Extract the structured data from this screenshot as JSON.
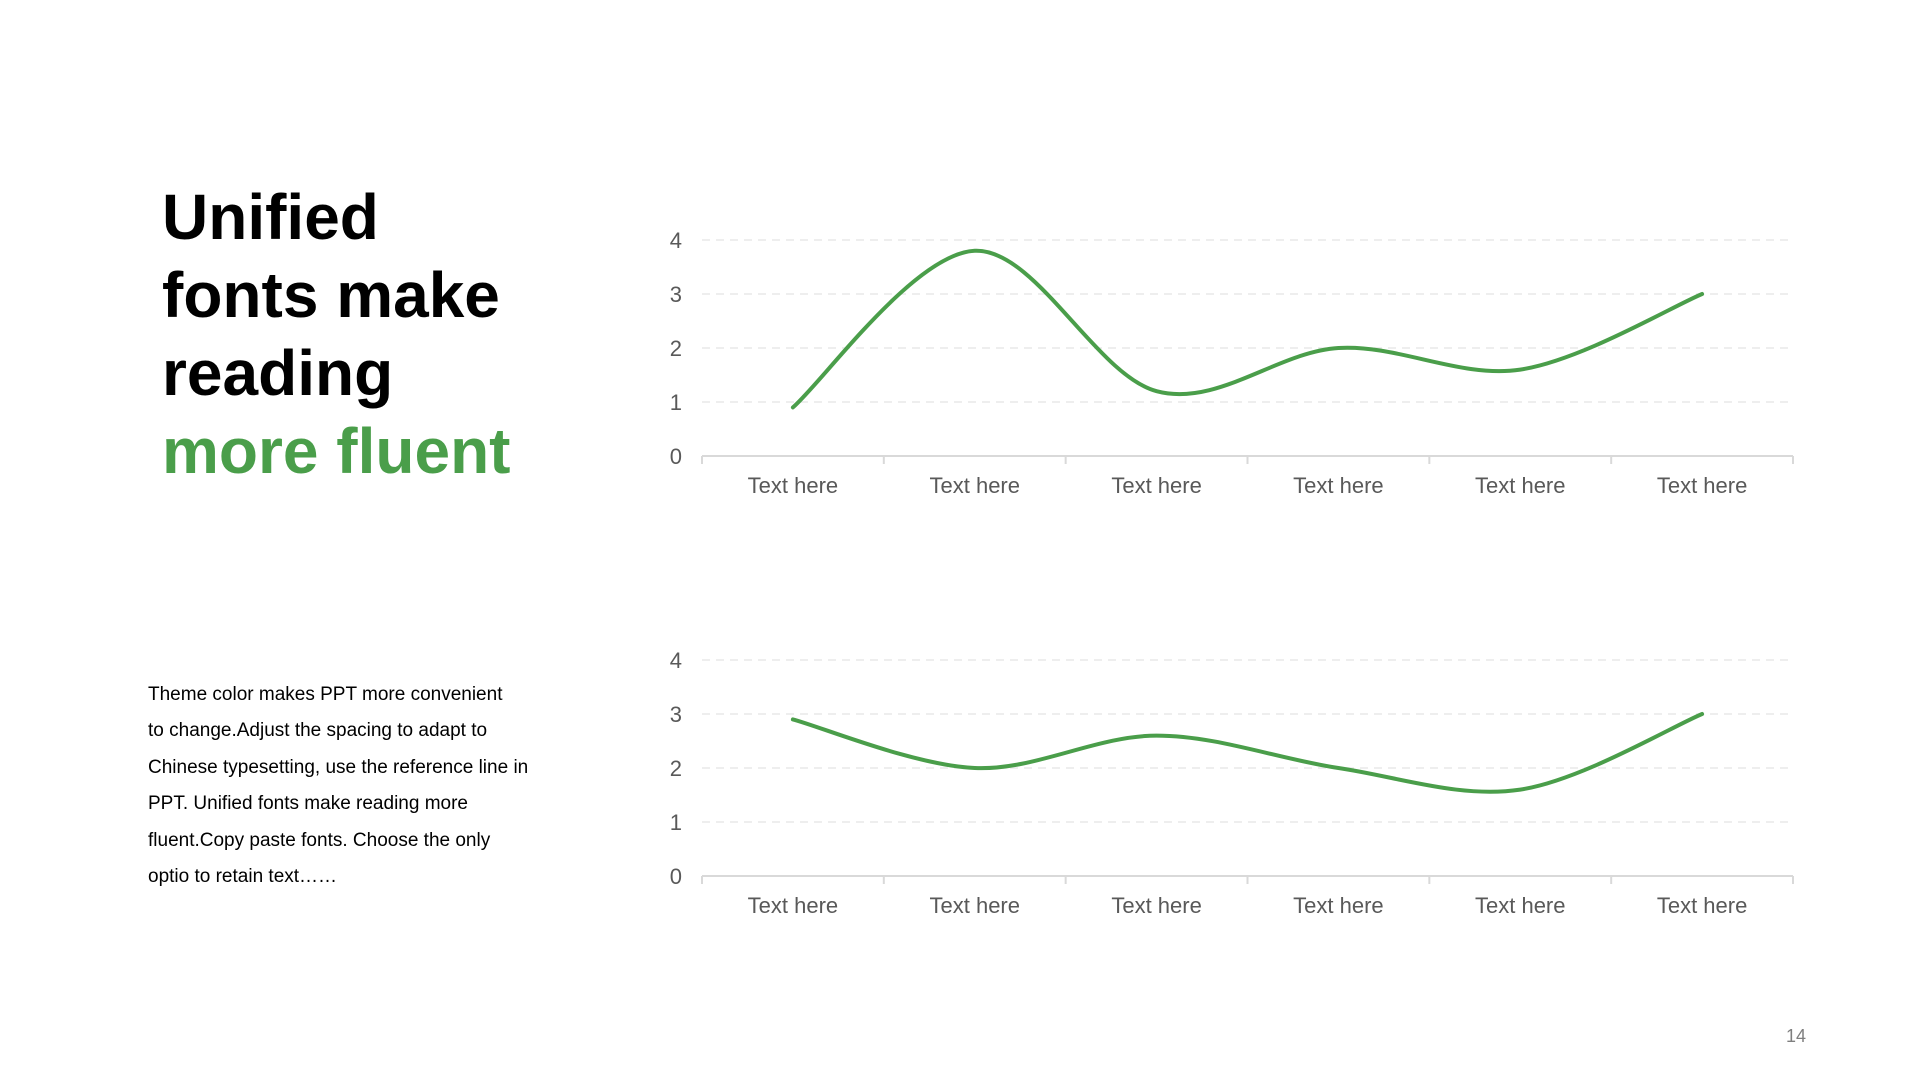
{
  "slide": {
    "title_lines": [
      "Unified",
      "fonts make",
      "reading"
    ],
    "title_accent": "more fluent",
    "body_lines": [
      "Theme  color makes PPT more convenient",
      "to change.Adjust the spacing to adapt to",
      "Chinese typesetting, use the reference line in",
      "PPT. Unified fonts make reading more",
      "fluent.Copy paste fonts. Choose the only",
      "optio to retain text……"
    ],
    "page_number": "14"
  },
  "colors": {
    "accent": "#4a9e4a",
    "line": "#4a9e4a",
    "grid": "#e8e8e8",
    "axis": "#d9d9d9",
    "tick_text": "#595959"
  },
  "chart_data": [
    {
      "type": "line",
      "smooth": true,
      "categories": [
        "Text here",
        "Text here",
        "Text here",
        "Text here",
        "Text here",
        "Text here"
      ],
      "series": [
        {
          "values": [
            0.9,
            3.8,
            1.2,
            2.0,
            1.6,
            3.0
          ]
        }
      ],
      "ylim": [
        0,
        4
      ],
      "yticks": [
        0,
        1,
        2,
        3,
        4
      ],
      "grid": "horizontal-dashed",
      "legend": "none"
    },
    {
      "type": "line",
      "smooth": true,
      "categories": [
        "Text here",
        "Text here",
        "Text here",
        "Text here",
        "Text here",
        "Text here"
      ],
      "series": [
        {
          "values": [
            2.9,
            2.0,
            2.6,
            2.0,
            1.6,
            3.0
          ]
        }
      ],
      "ylim": [
        0,
        4
      ],
      "yticks": [
        0,
        1,
        2,
        3,
        4
      ],
      "grid": "horizontal-dashed",
      "legend": "none"
    }
  ]
}
